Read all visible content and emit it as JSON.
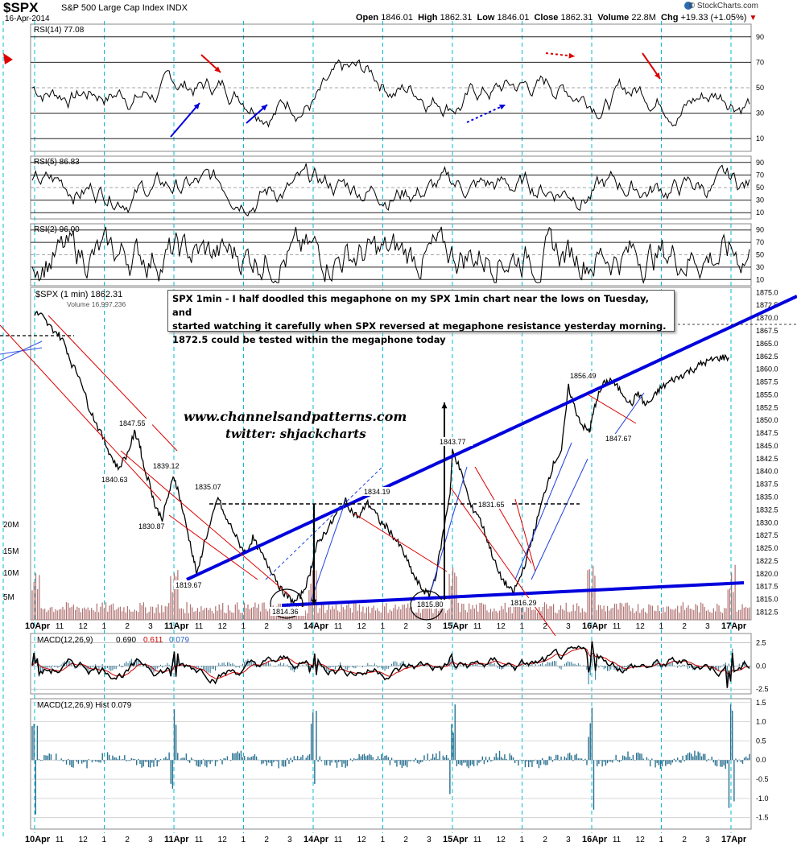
{
  "header": {
    "ticker": "$SPX",
    "company": "S&P 500 Large Cap Index",
    "exchange": "INDX",
    "date": "16-Apr-2014",
    "open_label": "Open",
    "open": "1846.01",
    "high_label": "High",
    "high": "1862.31",
    "low_label": "Low",
    "low": "1846.01",
    "close_label": "Close",
    "close": "1862.31",
    "volume_label": "Volume",
    "volume": "22.8M",
    "chg_label": "Chg",
    "chg": "+19.33 (+1.05%)",
    "brand": "© StockCharts.com",
    "arrow_icon": "down-triangle-icon"
  },
  "callout": {
    "line1": "SPX 1min - I half doodled this megaphone on my SPX 1min chart near the lows on Tuesday, and",
    "line2": "started watching it carefully when SPX reversed at megaphone resistance yesterday morning.",
    "line3": "1872.5 could be tested within the megaphone today"
  },
  "watermark": {
    "site": "www.channelsandpatterns.com",
    "twitter": "twitter: shjackcharts"
  },
  "colors": {
    "price_line": "#000000",
    "red_line": "#dd0000",
    "trend_blue": "#0000dd",
    "volume": "#b07070",
    "macd_teal": "#2a7090",
    "grid_cyan": "#00bcd4",
    "rsi_fill_overbought": "#666666",
    "rsi_fill_oversold": "#8a4a5a"
  },
  "chart_data": [
    {
      "type": "line",
      "title": "RSI(14) 77.08",
      "panel": "rsi14",
      "ylim": [
        0,
        100
      ],
      "yticks": [
        10,
        30,
        50,
        70,
        90
      ],
      "last": 77.08
    },
    {
      "type": "line",
      "title": "RSI(5) 86.83",
      "panel": "rsi5",
      "ylim": [
        0,
        100
      ],
      "yticks": [
        10,
        30,
        50,
        70,
        90
      ],
      "last": 86.83
    },
    {
      "type": "line",
      "title": "RSI(2) 96.00",
      "panel": "rsi2",
      "ylim": [
        0,
        100
      ],
      "yticks": [
        10,
        30,
        50,
        70,
        90
      ],
      "last": 96.0
    },
    {
      "type": "line",
      "title": "$SPX (1 min) 1862.31",
      "panel": "price",
      "volume_label": "Volume 16,997,236",
      "ylim": [
        1811,
        1876
      ],
      "yticks": [
        1812.5,
        1815.0,
        1817.5,
        1820.0,
        1822.5,
        1825.0,
        1827.5,
        1830.0,
        1832.5,
        1835.0,
        1837.5,
        1840.0,
        1842.5,
        1845.0,
        1847.5,
        1850.0,
        1852.5,
        1855.0,
        1857.5,
        1860.0,
        1862.5,
        1865.0,
        1867.5,
        1870.0,
        1872.5,
        1875.0
      ],
      "volume_ticks": [
        "5M",
        "10M",
        "15M",
        "20M"
      ],
      "x_sessions": [
        "10Apr",
        "11Apr",
        "14Apr",
        "15Apr",
        "16Apr",
        "17Apr"
      ],
      "x_tick_labels": [
        "10Apr",
        "11",
        "12",
        "1",
        "2",
        "3",
        "11Apr",
        "11",
        "12",
        "1",
        "2",
        "3",
        "14Apr",
        "11",
        "12",
        "1",
        "2",
        "3",
        "15Apr",
        "11",
        "12",
        "1",
        "2",
        "3",
        "16Apr",
        "11",
        "12",
        "1",
        "2",
        "3",
        "17Apr"
      ],
      "x": [
        0,
        0.3,
        0.6,
        1.0,
        1.3,
        1.6,
        2.0,
        2.3,
        2.6,
        3.0,
        3.3,
        3.6,
        4.0,
        4.3,
        4.5,
        4.7,
        5.0,
        5.2,
        5.5,
        5.8,
        6.0,
        6.2,
        6.5,
        6.8,
        7.0,
        7.3,
        7.6,
        7.9,
        8.2,
        8.5,
        8.8,
        9.1,
        9.4,
        9.7,
        10.0,
        10.3,
        10.6,
        10.9,
        11.2,
        11.5,
        11.8,
        12.0,
        12.2,
        12.5,
        12.8,
        13.1,
        13.4,
        13.7,
        14.0,
        14.3,
        14.6,
        14.9,
        15.2,
        15.5,
        15.8,
        16.1,
        16.4,
        16.7,
        17.0,
        17.3,
        17.6,
        17.9,
        18.0,
        18.2,
        18.5,
        18.8,
        19.1,
        19.4,
        19.7,
        20.0,
        20.3,
        20.6,
        20.9,
        21.2,
        21.5,
        21.8,
        22.1,
        22.4,
        22.7,
        23.0,
        23.3,
        23.6,
        23.9,
        24.0,
        24.2,
        24.5,
        24.8,
        25.1,
        25.4,
        25.7,
        26.0,
        26.3,
        26.6,
        26.9,
        27.2,
        27.5,
        27.8,
        28.1,
        28.4,
        28.7,
        29.0,
        29.3,
        29.6,
        29.9
      ],
      "y": [
        1871.0,
        1870.5,
        1868.5,
        1867.0,
        1865.0,
        1861.0,
        1858.0,
        1853.0,
        1850.0,
        1846.0,
        1843.0,
        1840.6,
        1843.5,
        1847.5,
        1846.0,
        1841.0,
        1837.0,
        1833.0,
        1830.9,
        1836.0,
        1839.1,
        1836.0,
        1830.0,
        1824.0,
        1819.7,
        1826.0,
        1830.0,
        1835.1,
        1831.0,
        1829.0,
        1826.0,
        1824.0,
        1827.0,
        1824.5,
        1822.0,
        1820.0,
        1817.0,
        1815.5,
        1814.4,
        1816.0,
        1819.0,
        1823.0,
        1826.0,
        1828.0,
        1830.0,
        1832.5,
        1834.2,
        1832.0,
        1831.0,
        1834.0,
        1832.5,
        1830.0,
        1829.0,
        1827.0,
        1825.0,
        1822.0,
        1819.0,
        1817.0,
        1815.8,
        1820.0,
        1828.0,
        1836.0,
        1843.8,
        1842.0,
        1838.0,
        1833.0,
        1831.7,
        1828.0,
        1824.0,
        1820.0,
        1818.0,
        1816.3,
        1819.0,
        1823.0,
        1828.0,
        1833.0,
        1838.0,
        1842.0,
        1844.0,
        1856.5,
        1852.0,
        1849.0,
        1847.7,
        1850.0,
        1854.0,
        1857.0,
        1858.0,
        1856.5,
        1855.0,
        1853.0,
        1855.5,
        1853.0,
        1854.0,
        1856.0,
        1857.0,
        1858.0,
        1858.5,
        1859.5,
        1860.0,
        1861.0,
        1861.5,
        1862.0,
        1862.3,
        1862.31
      ],
      "annotations": [
        "1847.55",
        "1840.63",
        "1839.12",
        "1830.87",
        "1835.07",
        "1819.67",
        "1814.36",
        "1834.19",
        "1815.80",
        "1843.77",
        "1831.65",
        "1816.29",
        "1856.49",
        "1847.67"
      ]
    },
    {
      "type": "line",
      "title": "MACD(12,26,9) 0.690, 0.611, 0.079",
      "panel": "macd",
      "legend": [
        "MACD(12,26,9)",
        "0.690",
        "0.611",
        "0.079"
      ],
      "ylim": [
        -3,
        3.5
      ],
      "yticks": [
        -2.5,
        0.0,
        2.5
      ]
    },
    {
      "type": "bar",
      "title": "MACD(12,26,9) Hist 0.079",
      "panel": "hist",
      "legend": "MACD(12,26,9) Hist 0.079",
      "ylim": [
        -1.8,
        1.6
      ],
      "yticks": [
        -1.5,
        -1.0,
        -0.5,
        0.0,
        0.5,
        1.0,
        1.5
      ]
    }
  ]
}
